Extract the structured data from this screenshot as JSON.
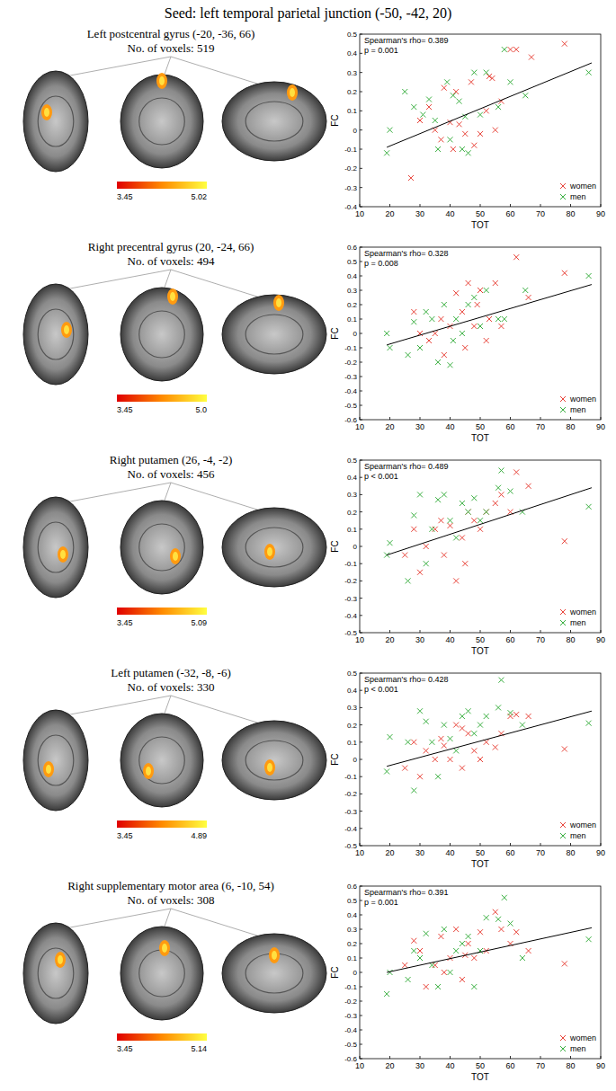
{
  "title": "Seed: left temporal parietal junction (-50, -42, 20)",
  "chart_data": [
    {
      "type": "scatter",
      "title": "Left postcentral gyrus (-20, -36, 66)",
      "subtitle": "No. of voxels: 519",
      "x_label": "TOT",
      "y_label": "FC",
      "xlim": [
        10,
        90
      ],
      "xticks": [
        10,
        20,
        30,
        40,
        50,
        60,
        70,
        80,
        90
      ],
      "ylim": [
        -0.4,
        0.5
      ],
      "yticks": [
        -0.4,
        -0.3,
        -0.2,
        -0.1,
        0,
        0.1,
        0.2,
        0.3,
        0.4,
        0.5
      ],
      "annotations": [
        "Spearman's rho= 0.389",
        "p = 0.001"
      ],
      "legend": "lower right",
      "colorbar": {
        "range": [
          3.45,
          5.02
        ],
        "ticks": [
          3.45,
          5.02
        ]
      },
      "fit_line": {
        "x": [
          19,
          87
        ],
        "y": [
          -0.09,
          0.35
        ]
      },
      "series": [
        {
          "name": "women",
          "color": "#e8443a",
          "marker": "x",
          "x": [
            27,
            30,
            33,
            35,
            37,
            38,
            40,
            41,
            43,
            45,
            47,
            50,
            52,
            53,
            55,
            57,
            60,
            62,
            67,
            78,
            42,
            48,
            54
          ],
          "values": [
            -0.25,
            0.05,
            0.12,
            0,
            -0.05,
            0.22,
            0.04,
            -0.1,
            0.03,
            -0.02,
            0.25,
            -0.02,
            0.1,
            0.28,
            0,
            0.15,
            0.42,
            0.42,
            0.38,
            0.45,
            0.2,
            -0.08,
            0.27
          ]
        },
        {
          "name": "men",
          "color": "#3cb043",
          "marker": "x",
          "x": [
            19,
            20,
            25,
            28,
            31,
            33,
            35,
            36,
            39,
            41,
            44,
            45,
            46,
            48,
            50,
            52,
            56,
            58,
            60,
            65,
            86,
            40,
            43
          ],
          "values": [
            -0.12,
            0,
            0.2,
            0.12,
            0.08,
            0.16,
            0.05,
            -0.1,
            0.25,
            0.18,
            -0.1,
            0.07,
            -0.12,
            0.3,
            0.08,
            0.3,
            0.12,
            0.42,
            0.25,
            0.18,
            0.3,
            -0.05,
            0.15
          ]
        }
      ]
    },
    {
      "type": "scatter",
      "title": "Right precentral gyrus (20, -24, 66)",
      "subtitle": "No. of voxels: 494",
      "x_label": "TOT",
      "y_label": "FC",
      "xlim": [
        10,
        90
      ],
      "xticks": [
        10,
        20,
        30,
        40,
        50,
        60,
        70,
        80,
        90
      ],
      "ylim": [
        -0.6,
        0.6
      ],
      "yticks": [
        -0.6,
        -0.5,
        -0.4,
        -0.3,
        -0.2,
        -0.1,
        0,
        0.1,
        0.2,
        0.3,
        0.4,
        0.5,
        0.6
      ],
      "annotations": [
        "Spearman's rho= 0.328",
        "p = 0.008"
      ],
      "legend": "lower right",
      "colorbar": {
        "range": [
          3.45,
          5
        ],
        "ticks": [
          3.45,
          {
            "value": 5,
            "label": "5.0"
          }
        ]
      },
      "fit_line": {
        "x": [
          19,
          87
        ],
        "y": [
          -0.08,
          0.34
        ]
      },
      "series": [
        {
          "name": "women",
          "color": "#e8443a",
          "marker": "x",
          "x": [
            28,
            30,
            33,
            35,
            37,
            38,
            40,
            42,
            44,
            46,
            48,
            50,
            52,
            53,
            55,
            57,
            62,
            66,
            78,
            45,
            49
          ],
          "values": [
            0.15,
            0,
            -0.05,
            0,
            0.1,
            -0.15,
            0.05,
            0.28,
            0.15,
            0.35,
            0.05,
            0.3,
            -0.05,
            0.1,
            0.35,
            0.05,
            0.53,
            0.25,
            0.42,
            -0.1,
            0.2
          ]
        },
        {
          "name": "men",
          "color": "#3cb043",
          "marker": "x",
          "x": [
            19,
            20,
            26,
            28,
            30,
            32,
            34,
            36,
            38,
            40,
            42,
            44,
            46,
            48,
            50,
            52,
            56,
            58,
            65,
            86,
            41
          ],
          "values": [
            0,
            -0.1,
            -0.15,
            0.08,
            -0.1,
            0.15,
            0.1,
            -0.2,
            0.2,
            -0.22,
            0.1,
            0,
            0.2,
            0.25,
            0.05,
            0.3,
            0.1,
            0.1,
            0.3,
            0.4,
            -0.05
          ]
        }
      ]
    },
    {
      "type": "scatter",
      "title": "Right putamen (26, -4, -2)",
      "subtitle": "No. of voxels: 456",
      "x_label": "TOT",
      "y_label": "FC",
      "xlim": [
        10,
        90
      ],
      "xticks": [
        10,
        20,
        30,
        40,
        50,
        60,
        70,
        80,
        90
      ],
      "ylim": [
        -0.5,
        0.5
      ],
      "yticks": [
        -0.5,
        -0.4,
        -0.3,
        -0.2,
        -0.1,
        0,
        0.1,
        0.2,
        0.3,
        0.4,
        0.5
      ],
      "annotations": [
        "Spearman's rho= 0.489",
        "p < 0.001"
      ],
      "legend": "lower right",
      "colorbar": {
        "range": [
          3.45,
          5.09
        ],
        "ticks": [
          3.45,
          5.09
        ]
      },
      "fit_line": {
        "x": [
          19,
          87
        ],
        "y": [
          -0.05,
          0.34
        ]
      },
      "series": [
        {
          "name": "women",
          "color": "#e8443a",
          "marker": "x",
          "x": [
            25,
            28,
            30,
            32,
            35,
            37,
            38,
            40,
            42,
            44,
            46,
            48,
            50,
            52,
            55,
            57,
            60,
            62,
            66,
            78,
            45
          ],
          "values": [
            -0.05,
            0.1,
            -0.15,
            0,
            0.1,
            0.15,
            -0.05,
            0.12,
            -0.2,
            0.05,
            0.2,
            0.15,
            0.1,
            0.2,
            0.25,
            0.3,
            0.2,
            0.43,
            0.35,
            0.03,
            -0.1
          ]
        },
        {
          "name": "men",
          "color": "#3cb043",
          "marker": "x",
          "x": [
            19,
            20,
            26,
            28,
            30,
            32,
            34,
            36,
            38,
            40,
            42,
            44,
            46,
            48,
            50,
            52,
            56,
            57,
            60,
            64,
            86
          ],
          "values": [
            -0.05,
            0.02,
            -0.2,
            0.18,
            0.3,
            -0.1,
            0.1,
            0.27,
            0.3,
            0.15,
            0.05,
            0.25,
            0.2,
            0.28,
            0.15,
            0.2,
            0.34,
            0.44,
            0.32,
            0.2,
            0.23
          ]
        }
      ]
    },
    {
      "type": "scatter",
      "title": "Left putamen (-32, -8, -6)",
      "subtitle": "No. of voxels: 330",
      "x_label": "TOT",
      "y_label": "FC",
      "xlim": [
        10,
        90
      ],
      "xticks": [
        10,
        20,
        30,
        40,
        50,
        60,
        70,
        80,
        90
      ],
      "ylim": [
        -0.5,
        0.5
      ],
      "yticks": [
        -0.5,
        -0.4,
        -0.3,
        -0.2,
        -0.1,
        0,
        0.1,
        0.2,
        0.3,
        0.4,
        0.5
      ],
      "annotations": [
        "Spearman's rho= 0.428",
        "p < 0.001"
      ],
      "legend": "lower right",
      "colorbar": {
        "range": [
          3.45,
          4.89
        ],
        "ticks": [
          3.45,
          4.89
        ]
      },
      "fit_line": {
        "x": [
          19,
          87
        ],
        "y": [
          -0.04,
          0.28
        ]
      },
      "series": [
        {
          "name": "women",
          "color": "#e8443a",
          "marker": "x",
          "x": [
            25,
            28,
            30,
            32,
            35,
            37,
            38,
            40,
            42,
            44,
            46,
            48,
            50,
            52,
            55,
            57,
            60,
            62,
            66,
            78,
            44
          ],
          "values": [
            -0.05,
            0.1,
            -0.1,
            0.05,
            0,
            0.12,
            0.08,
            0,
            0.2,
            -0.05,
            0.15,
            0.05,
            0,
            0.1,
            0.07,
            0.15,
            0.25,
            0.26,
            0.25,
            0.06,
            0.18
          ]
        },
        {
          "name": "men",
          "color": "#3cb043",
          "marker": "x",
          "x": [
            19,
            20,
            26,
            28,
            30,
            32,
            34,
            36,
            38,
            40,
            42,
            44,
            46,
            48,
            50,
            52,
            56,
            57,
            60,
            64,
            86
          ],
          "values": [
            -0.07,
            0.13,
            0.1,
            -0.18,
            0.28,
            0.22,
            0.1,
            -0.1,
            0.2,
            0.12,
            0.05,
            0.25,
            0.28,
            0.15,
            0.2,
            0.25,
            0.3,
            0.46,
            0.27,
            0.2,
            0.21
          ]
        }
      ]
    },
    {
      "type": "scatter",
      "title": "Right supplementary motor area (6, -10, 54)",
      "subtitle": "No. of voxels: 308",
      "x_label": "TOT",
      "y_label": "FC",
      "xlim": [
        10,
        90
      ],
      "xticks": [
        10,
        20,
        30,
        40,
        50,
        60,
        70,
        80,
        90
      ],
      "ylim": [
        -0.6,
        0.6
      ],
      "yticks": [
        -0.6,
        -0.5,
        -0.4,
        -0.3,
        -0.2,
        -0.1,
        0,
        0.1,
        0.2,
        0.3,
        0.4,
        0.5,
        0.6
      ],
      "annotations": [
        "Spearman's rho= 0.391",
        "p = 0.001"
      ],
      "legend": "lower right",
      "colorbar": {
        "range": [
          3.45,
          5.14
        ],
        "ticks": [
          3.45,
          5.14
        ]
      },
      "fit_line": {
        "x": [
          19,
          87
        ],
        "y": [
          0,
          0.31
        ]
      },
      "series": [
        {
          "name": "women",
          "color": "#e8443a",
          "marker": "x",
          "x": [
            25,
            28,
            30,
            32,
            35,
            37,
            38,
            40,
            42,
            44,
            46,
            48,
            50,
            52,
            55,
            57,
            60,
            62,
            66,
            78,
            45
          ],
          "values": [
            0.05,
            0.22,
            0.15,
            -0.1,
            0.05,
            0.25,
            0,
            0.1,
            0.3,
            -0.05,
            0.2,
            0.1,
            0.28,
            0.15,
            0.42,
            0.3,
            0.2,
            0.28,
            0.15,
            0.06,
            0.12
          ]
        },
        {
          "name": "men",
          "color": "#3cb043",
          "marker": "x",
          "x": [
            19,
            20,
            26,
            28,
            30,
            32,
            34,
            36,
            38,
            40,
            42,
            44,
            46,
            48,
            50,
            52,
            56,
            58,
            60,
            64,
            86
          ],
          "values": [
            -0.15,
            0,
            -0.05,
            0.15,
            0.1,
            0.27,
            0.05,
            -0.1,
            0.3,
            0,
            0.15,
            0.2,
            0.25,
            -0.1,
            0.15,
            0.38,
            0.37,
            0.52,
            0.34,
            0.1,
            0.23
          ]
        }
      ]
    }
  ]
}
